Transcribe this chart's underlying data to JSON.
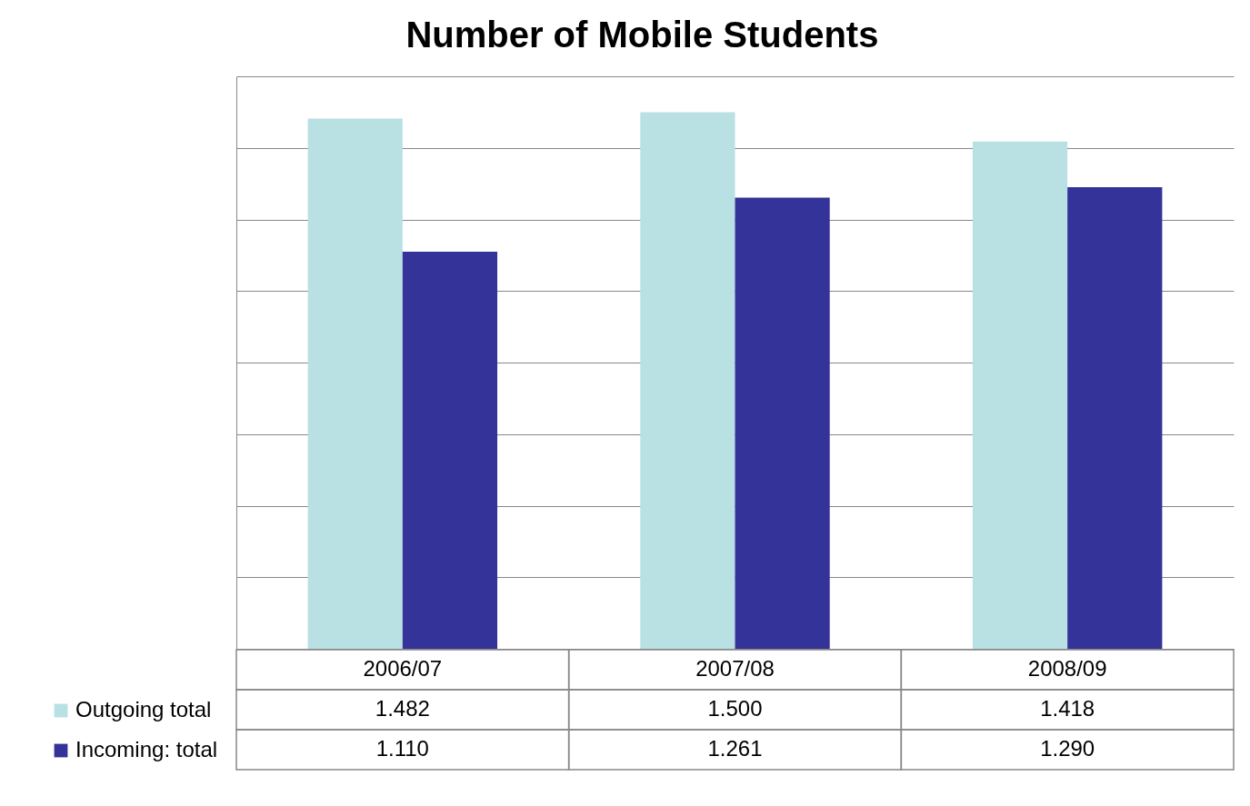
{
  "chart_data": {
    "type": "bar",
    "title": "Number of Mobile Students",
    "categories": [
      "2006/07",
      "2007/08",
      "2008/09"
    ],
    "series": [
      {
        "name": "Outgoing total",
        "color": "#b9e0e3",
        "values": [
          1482,
          1500,
          1418
        ],
        "value_labels": [
          "1.482",
          "1.500",
          "1.418"
        ]
      },
      {
        "name": "Incoming: total",
        "color": "#333399",
        "values": [
          1110,
          1261,
          1290
        ],
        "value_labels": [
          "1.110",
          "1.261",
          "1.290"
        ]
      }
    ],
    "ylim": [
      0,
      1600
    ],
    "yticks": [
      {
        "value": 0,
        "label": null
      },
      {
        "value": 200,
        "label": null
      },
      {
        "value": 400,
        "label": null
      },
      {
        "value": 600,
        "label": null
      },
      {
        "value": 800,
        "label": null
      },
      {
        "value": 1000,
        "label": null
      },
      {
        "value": 1200,
        "label": null
      },
      {
        "value": 1400,
        "label": null
      },
      {
        "value": 1600,
        "label": null
      }
    ],
    "tick_labels": "x",
    "grid": "y",
    "legend": "bottom left"
  }
}
